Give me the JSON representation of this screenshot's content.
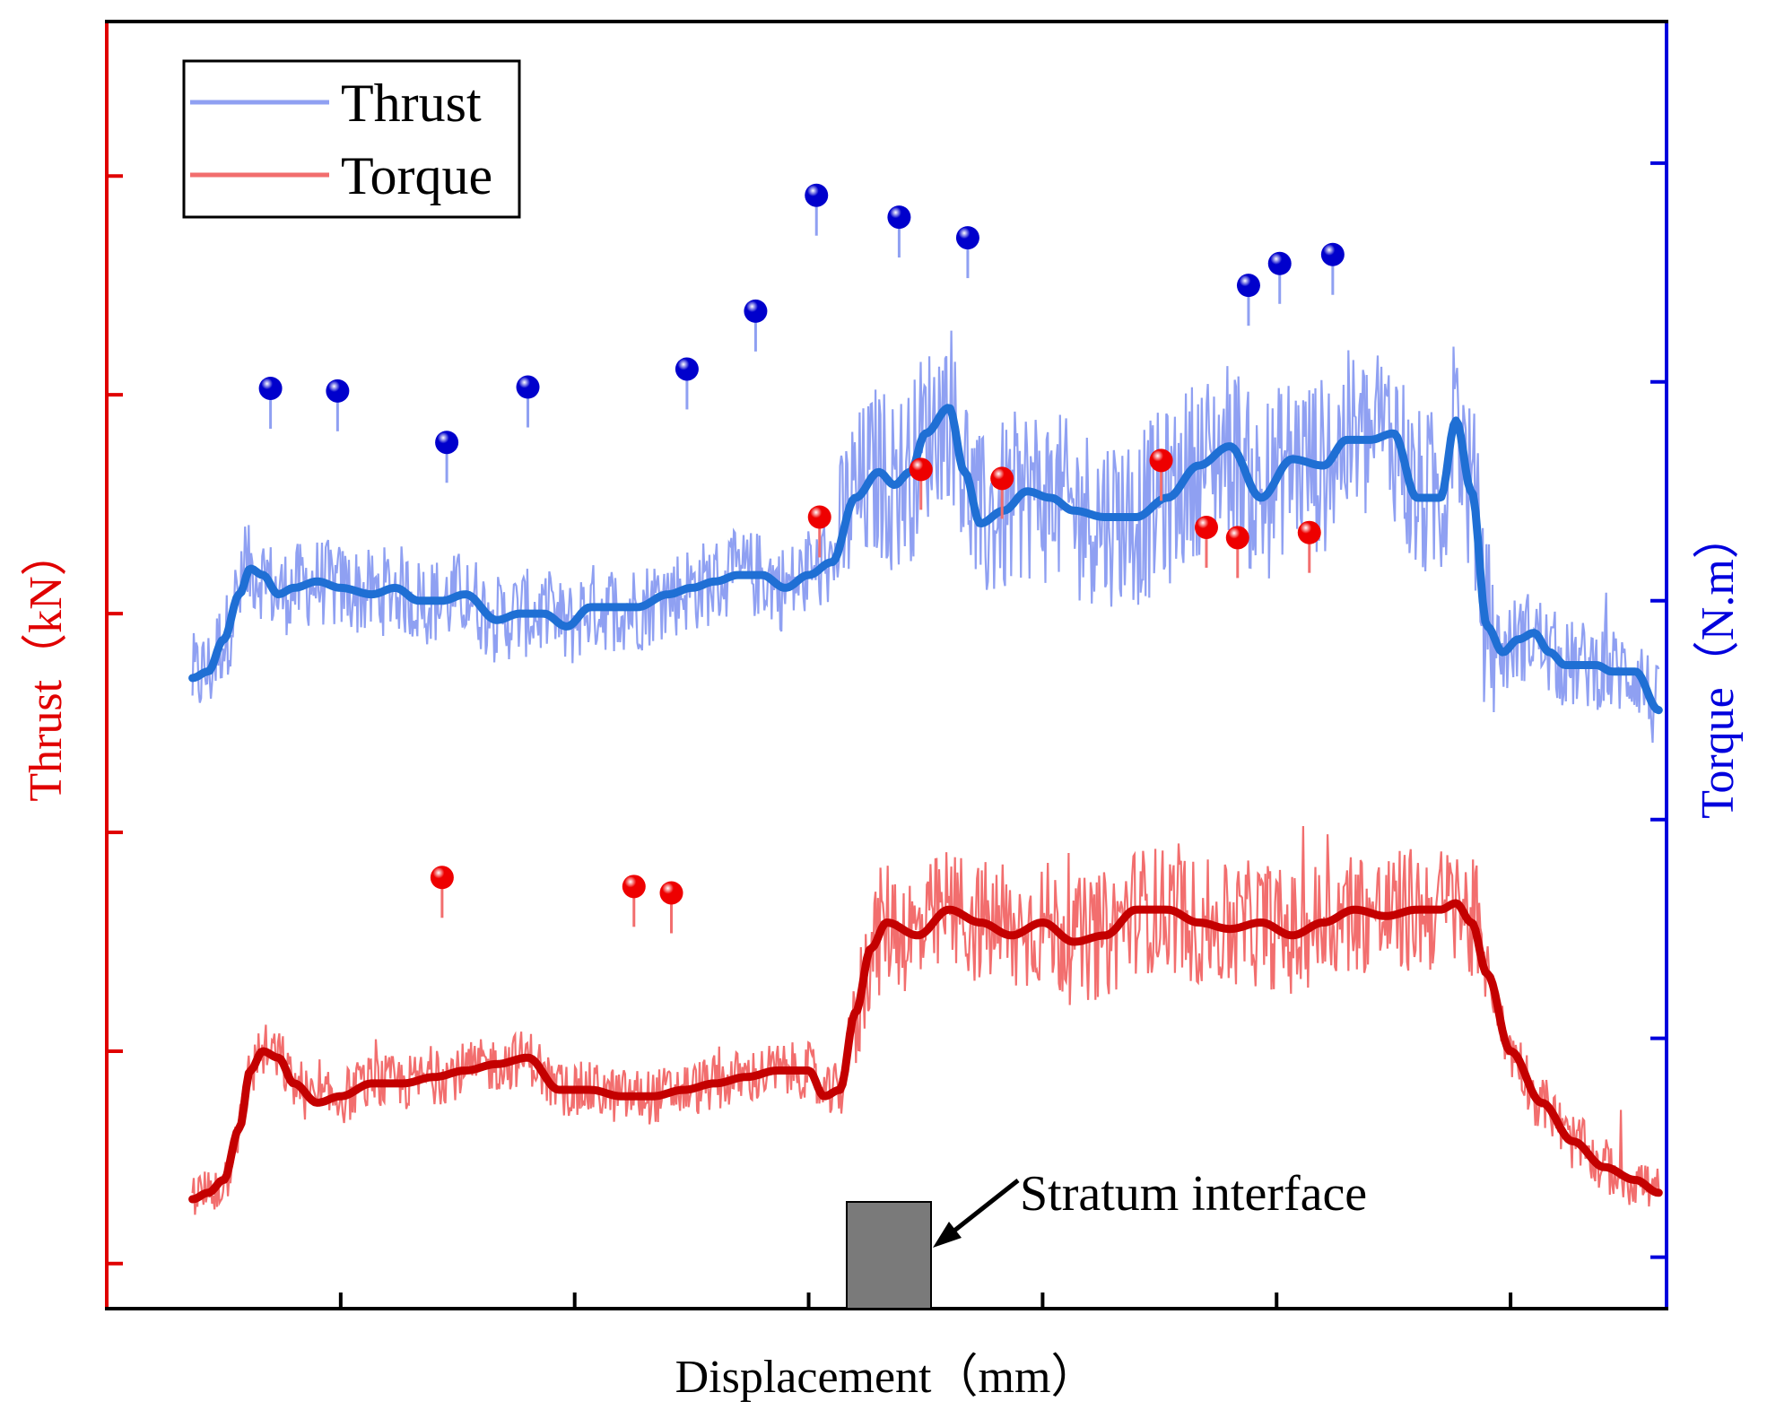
{
  "chart_data": {
    "type": "line",
    "title": "",
    "xlabel": "Displacement（mm）",
    "ylabel_left": "Thrust（kN）",
    "ylabel_right": "Torque（N.m）",
    "xlim": [
      0,
      100
    ],
    "ylim_left": [
      0,
      100
    ],
    "ylim_right": [
      0,
      100
    ],
    "x_ticks": [
      0,
      15,
      30,
      45,
      60,
      75,
      90,
      100
    ],
    "y_ticks_left": [
      3.5,
      20,
      37,
      54,
      71,
      88
    ],
    "y_ticks_right": [
      4,
      21,
      38,
      55,
      72,
      89
    ],
    "tick_labels_shown": false,
    "legend": {
      "position": "top-left",
      "entries": [
        {
          "label": "Thrust",
          "color": "#8fa0f2"
        },
        {
          "label": "Torque",
          "color": "#f26e6e"
        }
      ]
    },
    "colors": {
      "left_axis": "#e00000",
      "right_axis": "#0000dd",
      "thrust_raw": "#8fa0f2",
      "thrust_smooth": "#1f6fd4",
      "torque_raw": "#f26e6e",
      "torque_smooth": "#c40000",
      "thrust_peak": "#0000cc",
      "torque_peak": "#ee0000",
      "interface_block": "#7a7a7a"
    },
    "series": [
      {
        "name": "Thrust",
        "axis": "left",
        "smoothed": {
          "x": [
            5.5,
            6.5,
            7.5,
            8.5,
            9.2,
            10,
            11,
            12,
            13.5,
            15,
            17,
            18.5,
            20,
            21.5,
            23,
            25,
            26.5,
            28,
            29.5,
            31,
            32.5,
            34,
            36,
            37.5,
            39,
            40.5,
            42,
            43.5,
            45,
            46.5,
            48,
            49.5,
            50.5,
            51.5,
            52.5,
            54,
            55,
            56,
            57.5,
            59,
            60.5,
            62,
            64,
            66,
            68,
            70,
            72,
            74,
            76,
            78,
            79.5,
            81,
            82.5,
            84,
            85.5,
            86.5,
            87.5,
            88.5,
            89.5,
            90.5,
            91.5,
            92.5,
            93.5,
            94.5,
            95.5,
            96.5,
            98,
            99.5
          ],
          "y": [
            49,
            49.5,
            52,
            55.5,
            57.5,
            57,
            55.5,
            56,
            56.5,
            56,
            55.5,
            56,
            55,
            55,
            55.5,
            53.5,
            54,
            54,
            53,
            54.5,
            54.5,
            54.5,
            55.5,
            56,
            56.5,
            57,
            57,
            56,
            57,
            58,
            63,
            65,
            64,
            65,
            68,
            70,
            65,
            61,
            62,
            63.5,
            63,
            62,
            61.5,
            61.5,
            63,
            65.5,
            67,
            63,
            66,
            65.5,
            67.5,
            67.5,
            68,
            63,
            63,
            69,
            63.5,
            53,
            51,
            52,
            52.5,
            51,
            50,
            50,
            50,
            49.5,
            49.5,
            46.5
          ]
        }
      },
      {
        "name": "Torque",
        "axis": "right",
        "smoothed": {
          "x": [
            5.5,
            6.5,
            7.5,
            8.5,
            9.2,
            10,
            11,
            12,
            13.5,
            15,
            17,
            19,
            21,
            23,
            25,
            27,
            29,
            31,
            33,
            35,
            37,
            39,
            41,
            43,
            45,
            46,
            47,
            48,
            49,
            50,
            52,
            54,
            56,
            58,
            60,
            62,
            64,
            66,
            68,
            70,
            72,
            74,
            76,
            78,
            80,
            82,
            84,
            85.5,
            86.5,
            87.5,
            88.5,
            90,
            92,
            94,
            96,
            98,
            99.5
          ],
          "y": [
            8.5,
            9,
            10,
            14,
            18.5,
            20,
            19.5,
            17.5,
            16,
            16.5,
            17.5,
            17.5,
            18,
            18.5,
            19,
            19.5,
            17,
            17,
            16.5,
            16.5,
            17,
            17.5,
            18,
            18.5,
            18.5,
            16.5,
            17,
            23,
            28,
            30,
            29,
            31,
            30,
            29,
            30,
            28.5,
            29,
            31,
            31,
            30,
            29.5,
            30,
            29,
            30,
            31,
            30.5,
            31,
            31,
            31.5,
            30,
            26,
            20,
            16,
            13,
            11,
            10,
            9
          ]
        }
      }
    ],
    "peaks_thrust": [
      {
        "x": 10.5,
        "y": 71.5
      },
      {
        "x": 14.8,
        "y": 71.3
      },
      {
        "x": 21.8,
        "y": 67.3
      },
      {
        "x": 27,
        "y": 71.6
      },
      {
        "x": 37.2,
        "y": 73
      },
      {
        "x": 41.6,
        "y": 77.5
      },
      {
        "x": 45.5,
        "y": 86.5
      },
      {
        "x": 50.8,
        "y": 84.8
      },
      {
        "x": 55.2,
        "y": 83.2
      },
      {
        "x": 73.2,
        "y": 79.5
      },
      {
        "x": 75.2,
        "y": 81.2
      },
      {
        "x": 78.6,
        "y": 81.9
      }
    ],
    "peaks_torque": [
      {
        "x": 21.5,
        "y": 33.5
      },
      {
        "x": 33.8,
        "y": 32.8
      },
      {
        "x": 36.2,
        "y": 32.3
      },
      {
        "x": 45.7,
        "y": 61.5
      },
      {
        "x": 52.2,
        "y": 65.2
      },
      {
        "x": 57.4,
        "y": 64.5
      },
      {
        "x": 67.6,
        "y": 65.9
      },
      {
        "x": 70.5,
        "y": 60.7
      },
      {
        "x": 72.5,
        "y": 59.9
      },
      {
        "x": 77.1,
        "y": 60.3
      }
    ],
    "annotation": {
      "text": "Stratum interface",
      "x_start": 47.7,
      "x_end": 52.6
    }
  }
}
